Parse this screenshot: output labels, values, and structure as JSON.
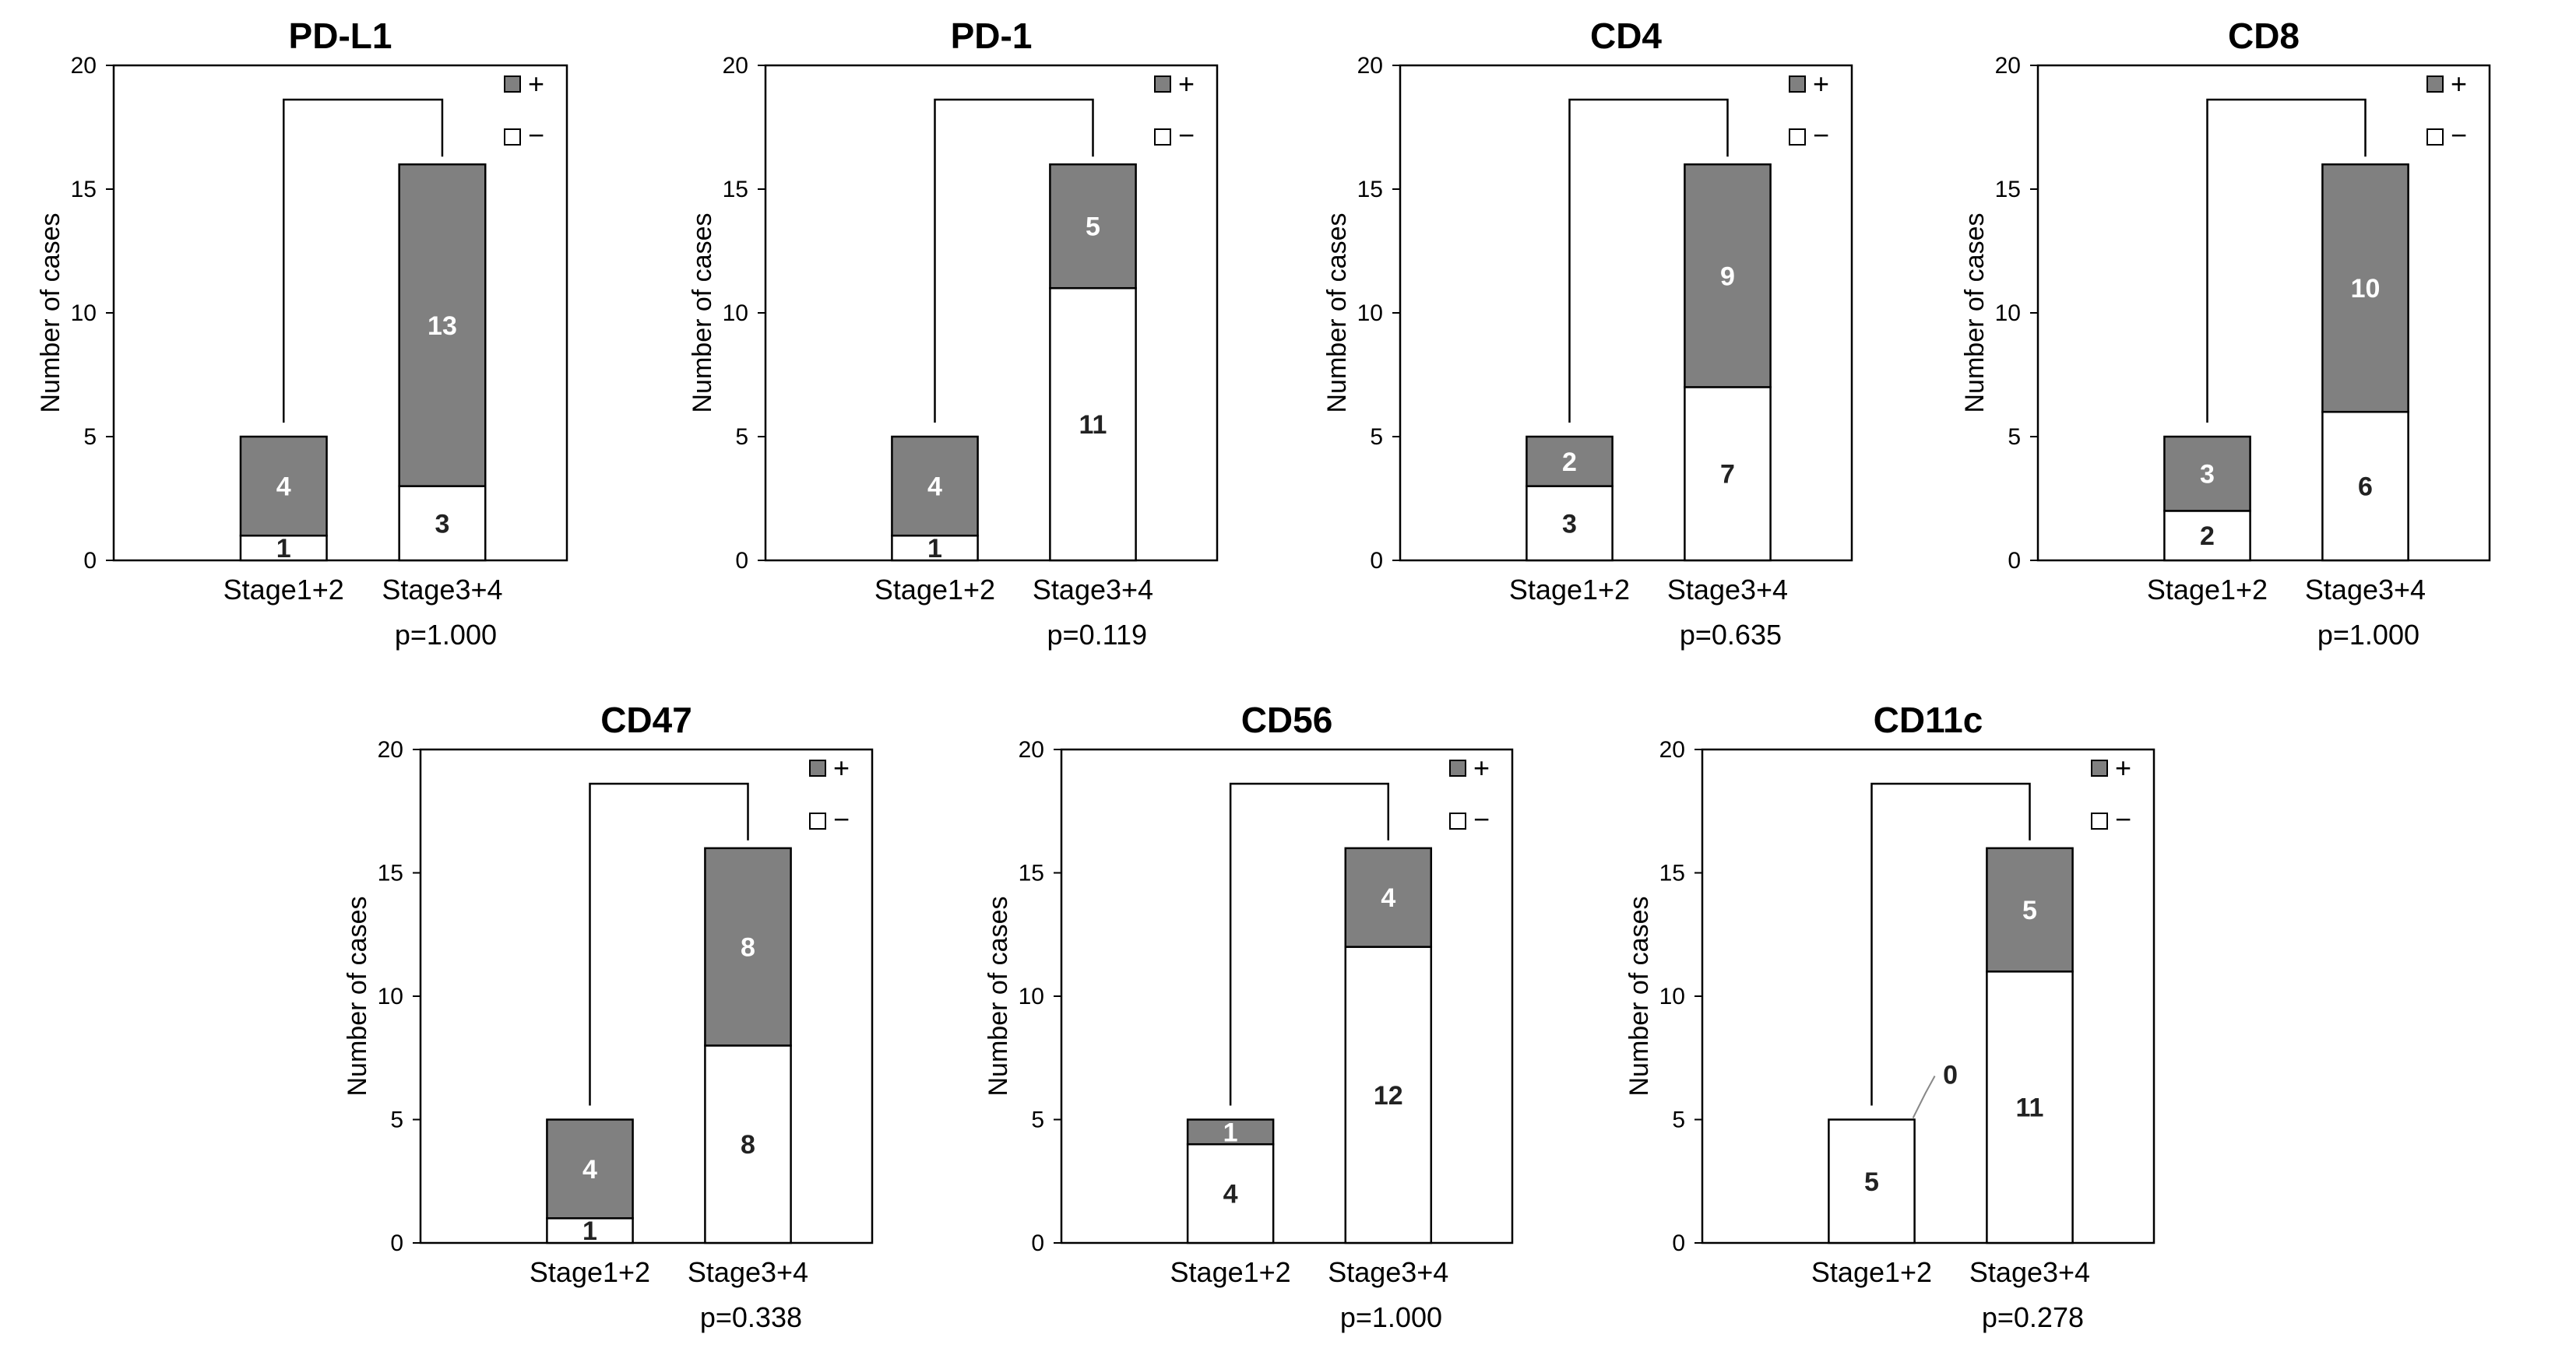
{
  "colors": {
    "positive": "#808080",
    "negative": "#ffffff",
    "frame": "#000000"
  },
  "chart_data": [
    {
      "type": "bar",
      "title": "PD-L1",
      "ylabel": "Number of cases",
      "ylim": [
        0,
        20
      ],
      "yticks": [
        0,
        5,
        10,
        15,
        20
      ],
      "categories": [
        "Stage1+2",
        "Stage3+4"
      ],
      "series": [
        {
          "name": "−",
          "values": [
            1,
            3
          ]
        },
        {
          "name": "+",
          "values": [
            4,
            13
          ]
        }
      ],
      "legend": [
        "+",
        "−"
      ],
      "p_value": "p=1.000"
    },
    {
      "type": "bar",
      "title": "PD-1",
      "ylabel": "Number of cases",
      "ylim": [
        0,
        20
      ],
      "yticks": [
        0,
        5,
        10,
        15,
        20
      ],
      "categories": [
        "Stage1+2",
        "Stage3+4"
      ],
      "series": [
        {
          "name": "−",
          "values": [
            1,
            11
          ]
        },
        {
          "name": "+",
          "values": [
            4,
            5
          ]
        }
      ],
      "legend": [
        "+",
        "−"
      ],
      "p_value": "p=0.119"
    },
    {
      "type": "bar",
      "title": "CD4",
      "ylabel": "Number of cases",
      "ylim": [
        0,
        20
      ],
      "yticks": [
        0,
        5,
        10,
        15,
        20
      ],
      "categories": [
        "Stage1+2",
        "Stage3+4"
      ],
      "series": [
        {
          "name": "−",
          "values": [
            3,
            7
          ]
        },
        {
          "name": "+",
          "values": [
            2,
            9
          ]
        }
      ],
      "legend": [
        "+",
        "−"
      ],
      "p_value": "p=0.635"
    },
    {
      "type": "bar",
      "title": "CD8",
      "ylabel": "Number of cases",
      "ylim": [
        0,
        20
      ],
      "yticks": [
        0,
        5,
        10,
        15,
        20
      ],
      "categories": [
        "Stage1+2",
        "Stage3+4"
      ],
      "series": [
        {
          "name": "−",
          "values": [
            2,
            6
          ]
        },
        {
          "name": "+",
          "values": [
            3,
            10
          ]
        }
      ],
      "legend": [
        "+",
        "−"
      ],
      "p_value": "p=1.000"
    },
    {
      "type": "bar",
      "title": "CD47",
      "ylabel": "Number of cases",
      "ylim": [
        0,
        20
      ],
      "yticks": [
        0,
        5,
        10,
        15,
        20
      ],
      "categories": [
        "Stage1+2",
        "Stage3+4"
      ],
      "series": [
        {
          "name": "−",
          "values": [
            1,
            8
          ]
        },
        {
          "name": "+",
          "values": [
            4,
            8
          ]
        }
      ],
      "legend": [
        "+",
        "−"
      ],
      "p_value": "p=0.338"
    },
    {
      "type": "bar",
      "title": "CD56",
      "ylabel": "Number of cases",
      "ylim": [
        0,
        20
      ],
      "yticks": [
        0,
        5,
        10,
        15,
        20
      ],
      "categories": [
        "Stage1+2",
        "Stage3+4"
      ],
      "series": [
        {
          "name": "−",
          "values": [
            4,
            12
          ]
        },
        {
          "name": "+",
          "values": [
            1,
            4
          ]
        }
      ],
      "legend": [
        "+",
        "−"
      ],
      "p_value": "p=1.000"
    },
    {
      "type": "bar",
      "title": "CD11c",
      "ylabel": "Number of cases",
      "ylim": [
        0,
        20
      ],
      "yticks": [
        0,
        5,
        10,
        15,
        20
      ],
      "categories": [
        "Stage1+2",
        "Stage3+4"
      ],
      "series": [
        {
          "name": "−",
          "values": [
            5,
            11
          ]
        },
        {
          "name": "+",
          "values": [
            0,
            5
          ]
        }
      ],
      "legend": [
        "+",
        "−"
      ],
      "p_value": "p=0.278"
    }
  ]
}
